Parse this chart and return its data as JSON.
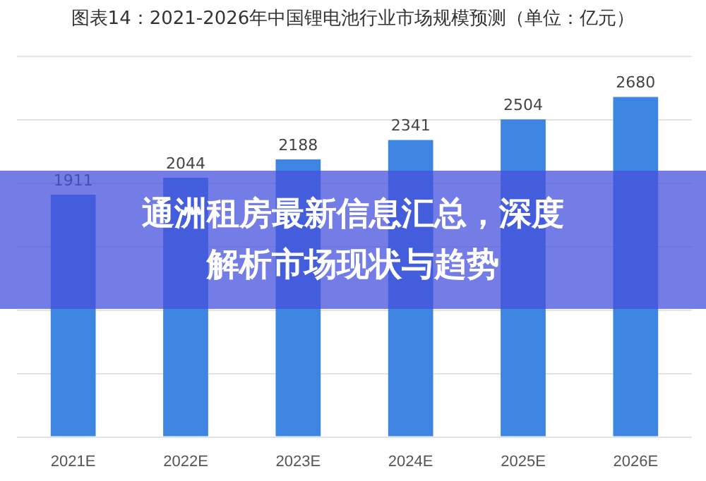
{
  "chart_data": {
    "type": "bar",
    "title": "图表14：2021-2026年中国锂电池行业市场规模预测（单位：亿元）",
    "categories": [
      "2021E",
      "2022E",
      "2023E",
      "2024E",
      "2025E",
      "2026E"
    ],
    "values": [
      1911,
      2044,
      2188,
      2341,
      2504,
      2680
    ],
    "color": "#3d85e0",
    "ylim": [
      0,
      3000
    ],
    "yticks": [
      {
        "value": 0,
        "label": null
      },
      {
        "value": 500,
        "label": null
      },
      {
        "value": 1000,
        "label": null
      },
      {
        "value": 1500,
        "label": null
      },
      {
        "value": 2000,
        "label": null
      },
      {
        "value": 2500,
        "label": null
      },
      {
        "value": 3000,
        "label": null
      }
    ],
    "grid": "y",
    "tick_labels": "x",
    "data_labels": true,
    "annotations": [
      "通洲租房最新信息汇总，深度解析市场现状与趋势"
    ]
  }
}
